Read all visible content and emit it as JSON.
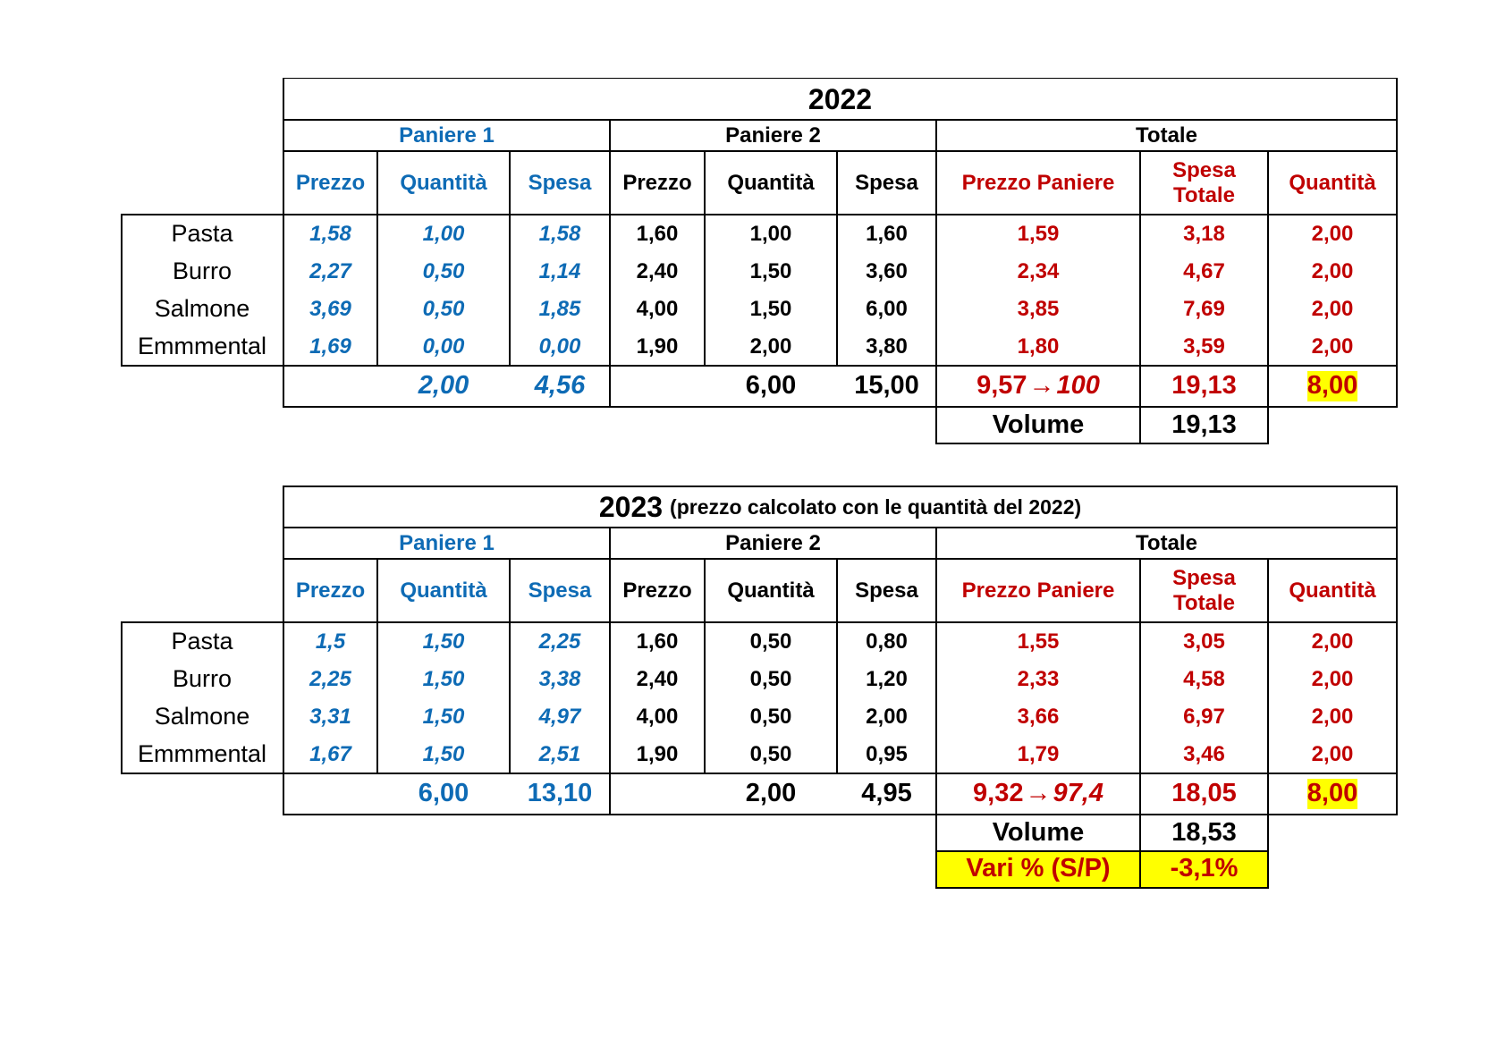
{
  "tables": [
    {
      "year": "2022",
      "subtitle": "",
      "groups": {
        "p1": "Paniere 1",
        "p2": "Paniere 2",
        "tot": "Totale"
      },
      "columns": {
        "prezzo": "Prezzo",
        "quantita": "Quantità",
        "spesa": "Spesa",
        "prezzo_paniere": "Prezzo Paniere",
        "spesa_totale_1": "Spesa",
        "spesa_totale_2": "Totale"
      },
      "rows": [
        {
          "name": "Pasta",
          "p1": [
            "1,58",
            "1,00",
            "1,58"
          ],
          "p2": [
            "1,60",
            "1,00",
            "1,60"
          ],
          "tot": [
            "1,59",
            "3,18",
            "2,00"
          ]
        },
        {
          "name": "Burro",
          "p1": [
            "2,27",
            "0,50",
            "1,14"
          ],
          "p2": [
            "2,40",
            "1,50",
            "3,60"
          ],
          "tot": [
            "2,34",
            "4,67",
            "2,00"
          ]
        },
        {
          "name": "Salmone",
          "p1": [
            "3,69",
            "0,50",
            "1,85"
          ],
          "p2": [
            "4,00",
            "1,50",
            "6,00"
          ],
          "tot": [
            "3,85",
            "7,69",
            "2,00"
          ]
        },
        {
          "name": "Emmmental",
          "p1": [
            "1,69",
            "0,00",
            "0,00"
          ],
          "p2": [
            "1,90",
            "2,00",
            "3,80"
          ],
          "tot": [
            "1,80",
            "3,59",
            "2,00"
          ]
        }
      ],
      "totals": {
        "p1_q": "2,00",
        "p1_s": "4,56",
        "p2_q": "6,00",
        "p2_s": "15,00",
        "price_idx": "9,57",
        "arrow": "→",
        "idx": "100",
        "spesa_tot": "19,13",
        "quant": "8,00"
      },
      "volume": {
        "label": "Volume",
        "value": "19,13"
      }
    },
    {
      "year": "2023",
      "subtitle": "(prezzo calcolato con le quantità del 2022)",
      "groups": {
        "p1": "Paniere 1",
        "p2": "Paniere 2",
        "tot": "Totale"
      },
      "columns": {
        "prezzo": "Prezzo",
        "quantita": "Quantità",
        "spesa": "Spesa",
        "prezzo_paniere": "Prezzo Paniere",
        "spesa_totale_1": "Spesa",
        "spesa_totale_2": "Totale"
      },
      "rows": [
        {
          "name": "Pasta",
          "p1": [
            "1,5",
            "1,50",
            "2,25"
          ],
          "p2": [
            "1,60",
            "0,50",
            "0,80"
          ],
          "tot": [
            "1,55",
            "3,05",
            "2,00"
          ]
        },
        {
          "name": "Burro",
          "p1": [
            "2,25",
            "1,50",
            "3,38"
          ],
          "p2": [
            "2,40",
            "0,50",
            "1,20"
          ],
          "tot": [
            "2,33",
            "4,58",
            "2,00"
          ]
        },
        {
          "name": "Salmone",
          "p1": [
            "3,31",
            "1,50",
            "4,97"
          ],
          "p2": [
            "4,00",
            "0,50",
            "2,00"
          ],
          "tot": [
            "3,66",
            "6,97",
            "2,00"
          ]
        },
        {
          "name": "Emmmental",
          "p1": [
            "1,67",
            "1,50",
            "2,51"
          ],
          "p2": [
            "1,90",
            "0,50",
            "0,95"
          ],
          "tot": [
            "1,79",
            "3,46",
            "2,00"
          ]
        }
      ],
      "totals": {
        "p1_q": "6,00",
        "p1_s": "13,10",
        "p2_q": "2,00",
        "p2_s": "4,95",
        "price_idx": "9,32",
        "arrow": "→",
        "idx": "97,4",
        "spesa_tot": "18,05",
        "quant": "8,00"
      },
      "volume": {
        "label": "Volume",
        "value": "18,53"
      },
      "variation": {
        "label": "Vari % (S/P)",
        "value": "-3,1%"
      }
    }
  ],
  "colors": {
    "blue": "#0e6bb5",
    "red": "#c00000",
    "highlight": "#ffff00"
  }
}
